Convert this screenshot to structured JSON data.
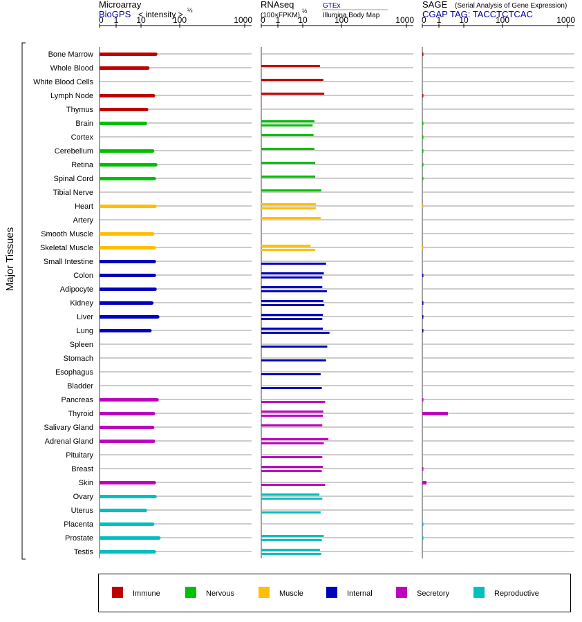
{
  "chart_data": {
    "type": "bar",
    "title": "",
    "row_group_label": "Major Tissues",
    "x_ticks": [
      "0",
      "1",
      "10",
      "100",
      "1000"
    ],
    "x_tick_values": [
      0,
      1,
      10,
      100,
      1000
    ],
    "panels": [
      {
        "id": "microarray",
        "header_line1": "Microarray",
        "header_link": "BioGPS",
        "header_scale": "< intensity >",
        "header_scale_exp": "⅔",
        "xlim": [
          0,
          1000
        ]
      },
      {
        "id": "rnaseq",
        "header_line1": "RNAseq",
        "header_scale": "(100×FPKM)",
        "header_scale_exp": "½",
        "source_top": "GTEx",
        "source_bottom": "Illumina Body Map",
        "xlim": [
          0,
          1000
        ]
      },
      {
        "id": "sage",
        "header_line1": "SAGE",
        "header_note": "(Serial Analysis of Gene Expression)",
        "header_link": "CGAP TAG: TACCTCTCAC",
        "xlim": [
          0,
          1000
        ]
      }
    ],
    "tissues": [
      "Bone Marrow",
      "Whole Blood",
      "White Blood Cells",
      "Lymph Node",
      "Thymus",
      "Brain",
      "Cortex",
      "Cerebellum",
      "Retina",
      "Spinal Cord",
      "Tibial Nerve",
      "Heart",
      "Artery",
      "Smooth Muscle",
      "Skeletal Muscle",
      "Small Intestine",
      "Colon",
      "Adipocyte",
      "Kidney",
      "Liver",
      "Lung",
      "Spleen",
      "Stomach",
      "Esophagus",
      "Bladder",
      "Pancreas",
      "Thyroid",
      "Salivary Gland",
      "Adrenal Gland",
      "Pituitary",
      "Breast",
      "Skin",
      "Ovary",
      "Uterus",
      "Placenta",
      "Prostate",
      "Testis"
    ],
    "categories_by_tissue": [
      "Immune",
      "Immune",
      "Immune",
      "Immune",
      "Immune",
      "Nervous",
      "Nervous",
      "Nervous",
      "Nervous",
      "Nervous",
      "Nervous",
      "Muscle",
      "Muscle",
      "Muscle",
      "Muscle",
      "Internal",
      "Internal",
      "Internal",
      "Internal",
      "Internal",
      "Internal",
      "Internal",
      "Internal",
      "Internal",
      "Internal",
      "Secretory",
      "Secretory",
      "Secretory",
      "Secretory",
      "Secretory",
      "Secretory",
      "Secretory",
      "Reproductive",
      "Reproductive",
      "Reproductive",
      "Reproductive",
      "Reproductive"
    ],
    "microarray_values": [
      24,
      15,
      null,
      21,
      14,
      13,
      null,
      20,
      24,
      22,
      null,
      23,
      null,
      20,
      22,
      22,
      22,
      23,
      19,
      27,
      17,
      null,
      null,
      null,
      null,
      26,
      21,
      20,
      21,
      null,
      null,
      22,
      23,
      13,
      20,
      29,
      22
    ],
    "rnaseq_gtex_values": [
      null,
      28,
      34,
      36,
      null,
      20,
      19,
      20,
      21,
      21,
      30,
      22,
      29,
      null,
      16,
      null,
      35,
      32,
      34,
      33,
      33,
      null,
      null,
      null,
      null,
      null,
      34,
      32,
      46,
      null,
      33,
      null,
      27,
      null,
      null,
      35,
      28
    ],
    "rnaseq_ibm_values": [
      null,
      null,
      null,
      null,
      null,
      18,
      null,
      null,
      null,
      null,
      null,
      22,
      null,
      null,
      21,
      40,
      32,
      42,
      36,
      32,
      49,
      43,
      40,
      29,
      31,
      38,
      33,
      null,
      35,
      32,
      31,
      38,
      32,
      29,
      null,
      31,
      30
    ],
    "sage_values": [
      0.04,
      null,
      null,
      0.04,
      null,
      0.03,
      0.03,
      0.03,
      0.03,
      0.03,
      null,
      0.02,
      null,
      null,
      0.02,
      null,
      0.06,
      null,
      0.06,
      0.06,
      0.06,
      null,
      null,
      null,
      null,
      0.04,
      2.3,
      null,
      null,
      null,
      0.04,
      0.25,
      null,
      null,
      0.03,
      0.03,
      null
    ],
    "legend": [
      {
        "name": "Immune",
        "color": "#c00000"
      },
      {
        "name": "Nervous",
        "color": "#00bf00"
      },
      {
        "name": "Muscle",
        "color": "#ffbf00"
      },
      {
        "name": "Internal",
        "color": "#0000bf"
      },
      {
        "name": "Secretory",
        "color": "#bf00bf"
      },
      {
        "name": "Reproductive",
        "color": "#00bfbf"
      }
    ],
    "link_color": "#0000a0",
    "grid": true
  }
}
